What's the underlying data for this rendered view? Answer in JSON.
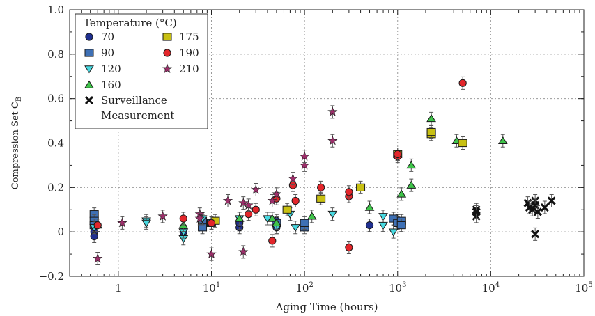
{
  "chart_data": {
    "type": "scatter",
    "title": "",
    "xlabel": "Aging Time (hours)",
    "ylabel": "Compression Set C",
    "ylabel_subscript": "B",
    "x_scale": "log",
    "xlim": [
      0.3,
      100000
    ],
    "ylim": [
      -0.2,
      1.0
    ],
    "x_ticks": [
      {
        "value": 1,
        "base": "1",
        "exp": ""
      },
      {
        "value": 10,
        "base": "10",
        "exp": "1"
      },
      {
        "value": 100,
        "base": "10",
        "exp": "2"
      },
      {
        "value": 1000,
        "base": "10",
        "exp": "3"
      },
      {
        "value": 10000,
        "base": "10",
        "exp": "4"
      },
      {
        "value": 100000,
        "base": "10",
        "exp": "5"
      }
    ],
    "y_ticks": [
      {
        "value": -0.2,
        "label": "−0.2"
      },
      {
        "value": 0,
        "label": "0"
      },
      {
        "value": 0.2,
        "label": "0.2"
      },
      {
        "value": 0.4,
        "label": "0.4"
      },
      {
        "value": 0.6,
        "label": "0.6"
      },
      {
        "value": 0.8,
        "label": "0.8"
      },
      {
        "value": 1.0,
        "label": "1.0"
      }
    ],
    "grid": true,
    "legend": {
      "title": "Temperature (°C)",
      "placement": "top-left",
      "columns": [
        [
          "70",
          "90",
          "120",
          "160"
        ],
        [
          "175",
          "190",
          "210"
        ]
      ],
      "extra_lines": [
        "Surveillance",
        "Measurement"
      ]
    },
    "series": [
      {
        "name": "70",
        "marker": "circle",
        "color": "#1f2f8f",
        "points": [
          [
            0.55,
            0.0
          ],
          [
            0.55,
            -0.02
          ],
          [
            5,
            0.02
          ],
          [
            5,
            0.0
          ],
          [
            20,
            0.02
          ],
          [
            20,
            0.04
          ],
          [
            50,
            0.02
          ],
          [
            50,
            0.05
          ],
          [
            500,
            0.03
          ],
          [
            1000,
            0.05
          ]
        ]
      },
      {
        "name": "90",
        "marker": "square",
        "color": "#3e70b5",
        "points": [
          [
            0.55,
            0.08
          ],
          [
            0.55,
            0.05
          ],
          [
            0.55,
            0.03
          ],
          [
            8,
            0.05
          ],
          [
            8,
            0.02
          ],
          [
            10,
            0.04
          ],
          [
            50,
            0.04
          ],
          [
            100,
            0.02
          ],
          [
            100,
            0.04
          ],
          [
            900,
            0.06
          ],
          [
            1000,
            0.04
          ],
          [
            1100,
            0.05
          ],
          [
            1100,
            0.03
          ]
        ]
      },
      {
        "name": "120",
        "marker": "triangle-down",
        "color": "#48d8e0",
        "points": [
          [
            0.55,
            0.02
          ],
          [
            2,
            0.05
          ],
          [
            2,
            0.04
          ],
          [
            5,
            -0.03
          ],
          [
            5,
            0.0
          ],
          [
            8,
            0.06
          ],
          [
            20,
            0.06
          ],
          [
            40,
            0.06
          ],
          [
            50,
            0.02
          ],
          [
            70,
            0.08
          ],
          [
            80,
            0.02
          ],
          [
            200,
            0.08
          ],
          [
            700,
            0.07
          ],
          [
            700,
            0.03
          ],
          [
            900,
            0.0
          ]
        ]
      },
      {
        "name": "160",
        "marker": "triangle-up",
        "color": "#3fc44a",
        "points": [
          [
            0.6,
            0.03
          ],
          [
            5,
            0.03
          ],
          [
            20,
            0.06
          ],
          [
            45,
            0.06
          ],
          [
            50,
            0.04
          ],
          [
            120,
            0.07
          ],
          [
            500,
            0.11
          ],
          [
            1100,
            0.17
          ],
          [
            1400,
            0.3
          ],
          [
            1400,
            0.21
          ],
          [
            2300,
            0.51
          ],
          [
            4300,
            0.41
          ],
          [
            13500,
            0.41
          ]
        ]
      },
      {
        "name": "175",
        "marker": "square",
        "color": "#c8c012",
        "points": [
          [
            11,
            0.05
          ],
          [
            65,
            0.1
          ],
          [
            150,
            0.15
          ],
          [
            400,
            0.2
          ],
          [
            1000,
            0.35
          ],
          [
            2300,
            0.44
          ],
          [
            2300,
            0.45
          ],
          [
            5000,
            0.4
          ]
        ]
      },
      {
        "name": "190",
        "marker": "circle",
        "color": "#e3262b",
        "points": [
          [
            0.6,
            0.03
          ],
          [
            5,
            0.06
          ],
          [
            10,
            0.04
          ],
          [
            25,
            0.08
          ],
          [
            30,
            0.1
          ],
          [
            45,
            -0.04
          ],
          [
            50,
            0.15
          ],
          [
            75,
            0.21
          ],
          [
            80,
            0.14
          ],
          [
            150,
            0.2
          ],
          [
            300,
            0.16
          ],
          [
            300,
            0.18
          ],
          [
            300,
            -0.07
          ],
          [
            1000,
            0.34
          ],
          [
            1000,
            0.35
          ],
          [
            5000,
            0.67
          ]
        ]
      },
      {
        "name": "210",
        "marker": "star",
        "color": "#9c2f6a",
        "points": [
          [
            0.6,
            -0.12
          ],
          [
            1.1,
            0.04
          ],
          [
            3,
            0.07
          ],
          [
            7.5,
            0.08
          ],
          [
            7.5,
            0.06
          ],
          [
            10,
            -0.1
          ],
          [
            15,
            0.14
          ],
          [
            22,
            -0.09
          ],
          [
            22,
            0.13
          ],
          [
            25,
            0.12
          ],
          [
            30,
            0.19
          ],
          [
            45,
            0.14
          ],
          [
            50,
            0.17
          ],
          [
            75,
            0.24
          ],
          [
            100,
            0.3
          ],
          [
            100,
            0.34
          ],
          [
            200,
            0.41
          ],
          [
            200,
            0.54
          ]
        ]
      },
      {
        "name": "Surveillance Measurement",
        "marker": "cross",
        "color": "#111111",
        "points": [
          [
            7000,
            0.1
          ],
          [
            7000,
            0.07
          ],
          [
            7000,
            0.09
          ],
          [
            25000,
            0.13
          ],
          [
            26000,
            0.11
          ],
          [
            28000,
            0.1
          ],
          [
            30000,
            0.14
          ],
          [
            30000,
            0.12
          ],
          [
            32000,
            0.09
          ],
          [
            30000,
            -0.01
          ],
          [
            38000,
            0.11
          ],
          [
            45000,
            0.14
          ]
        ]
      }
    ]
  }
}
